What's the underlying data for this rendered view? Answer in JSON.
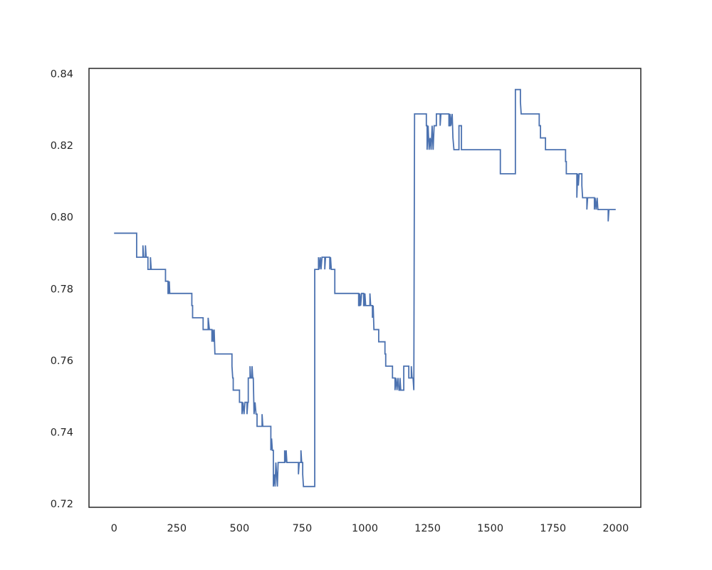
{
  "chart_data": {
    "type": "line",
    "title": "",
    "xlabel": "",
    "ylabel": "",
    "xlim": [
      -100,
      2100
    ],
    "ylim": [
      0.719,
      0.8415
    ],
    "grid": false,
    "xticks": [
      0,
      250,
      500,
      750,
      1000,
      1250,
      1500,
      1750,
      2000
    ],
    "xtick_labels": [
      "0",
      "250",
      "500",
      "750",
      "1000",
      "1250",
      "1500",
      "1750",
      "2000"
    ],
    "yticks": [
      0.72,
      0.74,
      0.76,
      0.78,
      0.8,
      0.82,
      0.84
    ],
    "ytick_labels": [
      "0.72",
      "0.74",
      "0.76",
      "0.78",
      "0.80",
      "0.82",
      "0.84"
    ],
    "series": [
      {
        "color": "#4c72b0",
        "points": [
          [
            0,
            0.7955
          ],
          [
            90,
            0.7955
          ],
          [
            90,
            0.7888
          ],
          [
            115,
            0.7888
          ],
          [
            115,
            0.7921
          ],
          [
            118,
            0.7888
          ],
          [
            125,
            0.7888
          ],
          [
            125,
            0.7921
          ],
          [
            128,
            0.7888
          ],
          [
            135,
            0.7888
          ],
          [
            135,
            0.7854
          ],
          [
            145,
            0.7854
          ],
          [
            145,
            0.7888
          ],
          [
            148,
            0.7854
          ],
          [
            205,
            0.7854
          ],
          [
            205,
            0.7821
          ],
          [
            215,
            0.7821
          ],
          [
            215,
            0.7787
          ],
          [
            220,
            0.7787
          ],
          [
            220,
            0.7821
          ],
          [
            222,
            0.7787
          ],
          [
            310,
            0.7787
          ],
          [
            310,
            0.7753
          ],
          [
            313,
            0.7753
          ],
          [
            313,
            0.7719
          ],
          [
            355,
            0.7719
          ],
          [
            355,
            0.7686
          ],
          [
            375,
            0.7686
          ],
          [
            375,
            0.7719
          ],
          [
            380,
            0.7686
          ],
          [
            390,
            0.7686
          ],
          [
            390,
            0.7652
          ],
          [
            393,
            0.7686
          ],
          [
            396,
            0.7652
          ],
          [
            399,
            0.7686
          ],
          [
            402,
            0.7618
          ],
          [
            470,
            0.7618
          ],
          [
            470,
            0.7584
          ],
          [
            473,
            0.7551
          ],
          [
            475,
            0.7551
          ],
          [
            475,
            0.7517
          ],
          [
            500,
            0.7517
          ],
          [
            500,
            0.7483
          ],
          [
            510,
            0.7483
          ],
          [
            510,
            0.745
          ],
          [
            514,
            0.7483
          ],
          [
            518,
            0.745
          ],
          [
            522,
            0.7483
          ],
          [
            530,
            0.7483
          ],
          [
            530,
            0.745
          ],
          [
            533,
            0.7483
          ],
          [
            535,
            0.7483
          ],
          [
            535,
            0.7551
          ],
          [
            542,
            0.7551
          ],
          [
            542,
            0.7584
          ],
          [
            545,
            0.7551
          ],
          [
            550,
            0.7551
          ],
          [
            550,
            0.7584
          ],
          [
            553,
            0.7551
          ],
          [
            555,
            0.7551
          ],
          [
            558,
            0.745
          ],
          [
            562,
            0.7483
          ],
          [
            566,
            0.745
          ],
          [
            570,
            0.745
          ],
          [
            570,
            0.7416
          ],
          [
            590,
            0.7416
          ],
          [
            590,
            0.745
          ],
          [
            593,
            0.7416
          ],
          [
            625,
            0.7416
          ],
          [
            625,
            0.7349
          ],
          [
            628,
            0.7382
          ],
          [
            631,
            0.7349
          ],
          [
            635,
            0.7349
          ],
          [
            635,
            0.7248
          ],
          [
            639,
            0.7282
          ],
          [
            642,
            0.7248
          ],
          [
            645,
            0.7315
          ],
          [
            648,
            0.7282
          ],
          [
            651,
            0.7248
          ],
          [
            654,
            0.7315
          ],
          [
            680,
            0.7315
          ],
          [
            680,
            0.7349
          ],
          [
            683,
            0.7315
          ],
          [
            686,
            0.7349
          ],
          [
            689,
            0.7315
          ],
          [
            735,
            0.7315
          ],
          [
            735,
            0.7282
          ],
          [
            738,
            0.7315
          ],
          [
            745,
            0.7315
          ],
          [
            745,
            0.7349
          ],
          [
            748,
            0.7315
          ],
          [
            752,
            0.7315
          ],
          [
            752,
            0.7282
          ],
          [
            755,
            0.7248
          ],
          [
            800,
            0.7248
          ],
          [
            800,
            0.7854
          ],
          [
            815,
            0.7854
          ],
          [
            815,
            0.7888
          ],
          [
            818,
            0.7854
          ],
          [
            822,
            0.7888
          ],
          [
            825,
            0.7854
          ],
          [
            829,
            0.7888
          ],
          [
            840,
            0.7888
          ],
          [
            840,
            0.7854
          ],
          [
            843,
            0.7888
          ],
          [
            860,
            0.7888
          ],
          [
            860,
            0.7854
          ],
          [
            863,
            0.7888
          ],
          [
            866,
            0.7854
          ],
          [
            880,
            0.7854
          ],
          [
            880,
            0.7787
          ],
          [
            975,
            0.7787
          ],
          [
            975,
            0.7753
          ],
          [
            980,
            0.7753
          ],
          [
            980,
            0.7787
          ],
          [
            983,
            0.7753
          ],
          [
            987,
            0.7787
          ],
          [
            995,
            0.7787
          ],
          [
            995,
            0.7753
          ],
          [
            1000,
            0.7753
          ],
          [
            1000,
            0.7787
          ],
          [
            1003,
            0.7753
          ],
          [
            1020,
            0.7753
          ],
          [
            1020,
            0.7787
          ],
          [
            1023,
            0.7753
          ],
          [
            1030,
            0.7753
          ],
          [
            1030,
            0.7719
          ],
          [
            1033,
            0.7753
          ],
          [
            1036,
            0.7686
          ],
          [
            1055,
            0.7686
          ],
          [
            1055,
            0.7652
          ],
          [
            1080,
            0.7652
          ],
          [
            1080,
            0.7618
          ],
          [
            1083,
            0.7618
          ],
          [
            1083,
            0.7584
          ],
          [
            1110,
            0.7584
          ],
          [
            1110,
            0.7551
          ],
          [
            1120,
            0.7551
          ],
          [
            1120,
            0.7517
          ],
          [
            1124,
            0.7551
          ],
          [
            1128,
            0.7517
          ],
          [
            1132,
            0.7551
          ],
          [
            1136,
            0.7517
          ],
          [
            1140,
            0.7517
          ],
          [
            1140,
            0.7551
          ],
          [
            1143,
            0.7517
          ],
          [
            1155,
            0.7517
          ],
          [
            1155,
            0.7584
          ],
          [
            1175,
            0.7584
          ],
          [
            1175,
            0.7551
          ],
          [
            1185,
            0.7551
          ],
          [
            1185,
            0.7584
          ],
          [
            1188,
            0.7551
          ],
          [
            1192,
            0.7551
          ],
          [
            1195,
            0.7517
          ],
          [
            1198,
            0.8288
          ],
          [
            1245,
            0.8288
          ],
          [
            1245,
            0.8255
          ],
          [
            1248,
            0.8255
          ],
          [
            1248,
            0.8188
          ],
          [
            1252,
            0.8255
          ],
          [
            1256,
            0.8188
          ],
          [
            1260,
            0.8221
          ],
          [
            1264,
            0.8188
          ],
          [
            1268,
            0.8255
          ],
          [
            1272,
            0.8188
          ],
          [
            1276,
            0.8255
          ],
          [
            1285,
            0.8255
          ],
          [
            1285,
            0.8288
          ],
          [
            1300,
            0.8288
          ],
          [
            1300,
            0.8255
          ],
          [
            1303,
            0.8288
          ],
          [
            1335,
            0.8288
          ],
          [
            1335,
            0.8255
          ],
          [
            1340,
            0.8255
          ],
          [
            1340,
            0.8288
          ],
          [
            1343,
            0.8255
          ],
          [
            1348,
            0.8288
          ],
          [
            1351,
            0.8221
          ],
          [
            1355,
            0.8188
          ],
          [
            1375,
            0.8188
          ],
          [
            1375,
            0.8255
          ],
          [
            1385,
            0.8255
          ],
          [
            1385,
            0.8188
          ],
          [
            1540,
            0.8188
          ],
          [
            1540,
            0.8121
          ],
          [
            1600,
            0.8121
          ],
          [
            1600,
            0.8356
          ],
          [
            1620,
            0.8356
          ],
          [
            1620,
            0.8322
          ],
          [
            1623,
            0.8288
          ],
          [
            1650,
            0.8288
          ],
          [
            1650,
            0.8288
          ],
          [
            1695,
            0.8288
          ],
          [
            1695,
            0.8255
          ],
          [
            1700,
            0.8255
          ],
          [
            1700,
            0.8221
          ],
          [
            1720,
            0.8221
          ],
          [
            1720,
            0.8188
          ],
          [
            1800,
            0.8188
          ],
          [
            1800,
            0.8155
          ],
          [
            1803,
            0.8155
          ],
          [
            1803,
            0.8121
          ],
          [
            1845,
            0.8121
          ],
          [
            1845,
            0.8054
          ],
          [
            1848,
            0.8121
          ],
          [
            1851,
            0.8088
          ],
          [
            1854,
            0.8121
          ],
          [
            1865,
            0.8121
          ],
          [
            1865,
            0.8088
          ],
          [
            1868,
            0.8054
          ],
          [
            1885,
            0.8054
          ],
          [
            1885,
            0.8021
          ],
          [
            1888,
            0.8054
          ],
          [
            1915,
            0.8054
          ],
          [
            1915,
            0.8021
          ],
          [
            1918,
            0.8054
          ],
          [
            1922,
            0.8021
          ],
          [
            1926,
            0.8054
          ],
          [
            1929,
            0.8021
          ],
          [
            1970,
            0.8021
          ],
          [
            1970,
            0.7988
          ],
          [
            1973,
            0.8021
          ],
          [
            2000,
            0.8021
          ]
        ]
      }
    ]
  }
}
